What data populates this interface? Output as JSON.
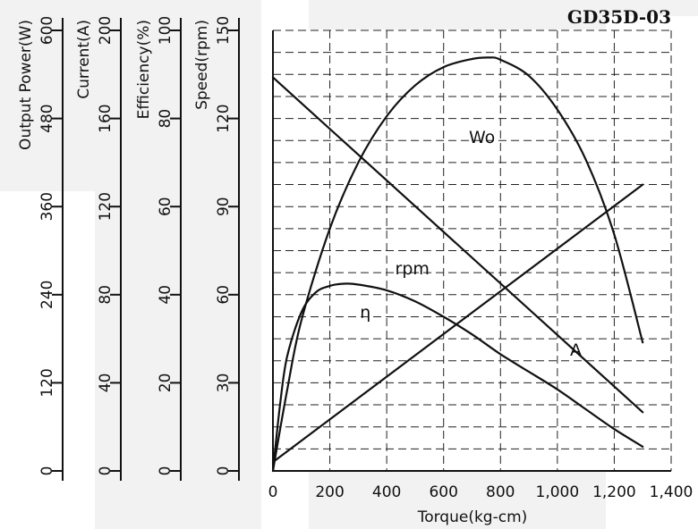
{
  "chart_data": {
    "type": "line",
    "title": "GD35D-03",
    "xlabel": "Torque(kg-cm)",
    "xlim": [
      0,
      1400
    ],
    "x_ticks": [
      "0",
      "200",
      "400",
      "600",
      "800",
      "1,000",
      "1,200",
      "1,400"
    ],
    "grid": true,
    "colors": {
      "background": "#ffffff",
      "panel": "#f2f2f2",
      "line": "#111111",
      "grid": "#222222"
    },
    "y_axes": [
      {
        "label": "Output Power(W)",
        "ylim": [
          0,
          600
        ],
        "ticks": [
          "0",
          "120",
          "240",
          "360",
          "480",
          "600"
        ]
      },
      {
        "label": "Current(A)",
        "ylim": [
          0,
          200
        ],
        "ticks": [
          "0",
          "40",
          "80",
          "120",
          "160",
          "200"
        ]
      },
      {
        "label": "Efficiency(%)",
        "ylim": [
          0,
          100
        ],
        "ticks": [
          "0",
          "20",
          "40",
          "60",
          "80",
          "100"
        ]
      },
      {
        "label": "Speed(rpm)",
        "ylim": [
          0,
          150
        ],
        "ticks": [
          "0",
          "30",
          "60",
          "90",
          "120",
          "150"
        ]
      }
    ],
    "series": [
      {
        "name": "Wo",
        "axis": 0,
        "label_at": [
          735,
          455
        ],
        "x": [
          0,
          50,
          100,
          200,
          300,
          400,
          500,
          600,
          700,
          760,
          800,
          900,
          1000,
          1100,
          1200,
          1300
        ],
        "y": [
          0,
          110,
          205,
          330,
          420,
          483,
          525,
          550,
          561,
          563,
          560,
          538,
          492,
          424,
          322,
          175
        ]
      },
      {
        "name": "A",
        "axis": 1,
        "label_at": [
          1065,
          55
        ],
        "x": [
          0,
          1300
        ],
        "y": [
          4,
          130
        ]
      },
      {
        "name": "η",
        "axis": 2,
        "label_at": [
          325,
          36
        ],
        "x": [
          0,
          25,
          50,
          100,
          150,
          200,
          250,
          300,
          400,
          500,
          600,
          700,
          800,
          900,
          1000,
          1100,
          1200,
          1300
        ],
        "y": [
          0,
          15,
          26,
          36,
          40.5,
          42,
          42.5,
          42.3,
          41,
          38.5,
          35,
          31,
          26.5,
          22.5,
          18.5,
          14,
          9.5,
          5.5
        ]
      },
      {
        "name": "rpm",
        "axis": 3,
        "label_at": [
          490,
          69
        ],
        "x": [
          0,
          1300
        ],
        "y": [
          134,
          20
        ]
      }
    ]
  }
}
